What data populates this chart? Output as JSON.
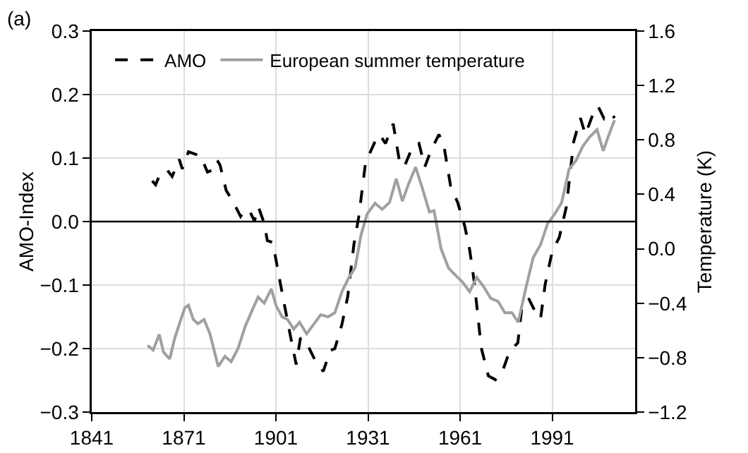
{
  "chart_data": {
    "type": "line",
    "annotations": [
      "(a)"
    ],
    "ylabel": "AMO-Index",
    "y2label": "Temperature (K)",
    "xlim": [
      1841,
      2018
    ],
    "xticks": [
      1841,
      1871,
      1901,
      1931,
      1961,
      1991
    ],
    "ylim": [
      -0.3,
      0.3
    ],
    "yticks": [
      {
        "value": -0.3,
        "label": "−0.3"
      },
      {
        "value": -0.2,
        "label": "−0.2"
      },
      {
        "value": -0.1,
        "label": "−0.1"
      },
      {
        "value": 0,
        "label": "0.0"
      },
      0.1,
      0.2,
      0.3
    ],
    "y2lim": [
      -1.2,
      1.6
    ],
    "y2ticks": [
      {
        "value": -1.2,
        "label": "−1.2"
      },
      {
        "value": -0.8,
        "label": "−0.8"
      },
      {
        "value": -0.4,
        "label": "−0.4"
      },
      {
        "value": 0,
        "label": "0.0"
      },
      0.4,
      0.8,
      1.2,
      1.6
    ],
    "grid": true,
    "legend": "top left",
    "marker": "none",
    "ref_lines": [
      {
        "axis": "y",
        "value": 0,
        "color": "#000000",
        "line_style": "solid"
      }
    ],
    "series": [
      {
        "name": "AMO",
        "color": "#000000",
        "line_style": "dashed",
        "x": [
          1860.7,
          1861.8,
          1863.3,
          1865.6,
          1867.2,
          1869.5,
          1870.5,
          1872.5,
          1874.8,
          1876.4,
          1878.7,
          1880.2,
          1881.8,
          1882.8,
          1884.8,
          1887.2,
          1889.5,
          1891,
          1892.5,
          1894,
          1895.3,
          1897.2,
          1898.2,
          1900,
          1901.8,
          1903.8,
          1905.6,
          1907.6,
          1909,
          1911,
          1913.3,
          1916.4,
          1918.7,
          1920.2,
          1922.5,
          1924.4,
          1926.4,
          1928,
          1930.2,
          1933.3,
          1934.8,
          1936.7,
          1939.2,
          1941.3,
          1942.8,
          1945.6,
          1947.6,
          1949.5,
          1951.5,
          1954.1,
          1955.6,
          1957.9,
          1960.2,
          1962.5,
          1964.1,
          1965.6,
          1967.9,
          1970.2,
          1972.5,
          1974.8,
          1976.4,
          1978.2,
          1979.8,
          1981,
          1983.3,
          1985.6,
          1987.2,
          1988.7,
          1991,
          1993.3,
          1995.6,
          1998,
          2000.2,
          2001.8,
          2004.1,
          2005.9,
          2007.9,
          2010.2,
          2011.3
        ],
        "values": [
          0.064,
          0.058,
          0.075,
          0.081,
          0.071,
          0.098,
          0.083,
          0.11,
          0.106,
          0.104,
          0.078,
          0.081,
          0.097,
          0.089,
          0.049,
          0.03,
          0.008,
          0.019,
          0.016,
          0.001,
          0.023,
          -0.003,
          -0.03,
          -0.033,
          -0.081,
          -0.132,
          -0.177,
          -0.225,
          -0.183,
          -0.191,
          -0.214,
          -0.236,
          -0.203,
          -0.2,
          -0.162,
          -0.118,
          -0.036,
          0.008,
          0.093,
          0.126,
          0.137,
          0.123,
          0.154,
          0.093,
          0.086,
          0.119,
          0.123,
          0.086,
          0.112,
          0.137,
          0.123,
          0.056,
          0.03,
          -0.007,
          -0.044,
          -0.095,
          -0.199,
          -0.243,
          -0.249,
          -0.236,
          -0.214,
          -0.199,
          -0.191,
          -0.14,
          -0.121,
          -0.143,
          -0.153,
          -0.099,
          -0.047,
          -0.025,
          0.023,
          0.126,
          0.163,
          0.137,
          0.167,
          0.182,
          0.162,
          0.171,
          0.163
        ]
      },
      {
        "name": "European summer temperature",
        "color": "#a0a0a0",
        "line_style": "solid",
        "axis": "y2",
        "x": [
          1859.2,
          1861,
          1863,
          1864.4,
          1866.4,
          1868,
          1869.5,
          1871.3,
          1872.5,
          1874.1,
          1875.6,
          1877.6,
          1879.5,
          1882.2,
          1884.4,
          1886.4,
          1888.7,
          1891,
          1893.3,
          1895.2,
          1897.2,
          1899.5,
          1901,
          1903,
          1904.8,
          1906.8,
          1908.7,
          1911,
          1913.3,
          1915.6,
          1918,
          1920.2,
          1922.5,
          1924.8,
          1926.8,
          1928.7,
          1930.7,
          1933.3,
          1935.6,
          1938,
          1940.2,
          1942.2,
          1944.1,
          1946.5,
          1948.7,
          1951,
          1952.5,
          1954.8,
          1957.2,
          1959.5,
          1961.8,
          1964.1,
          1966.4,
          1968.7,
          1971,
          1973.3,
          1975.6,
          1977.9,
          1979.9,
          1982.5,
          1984.8,
          1987.2,
          1989.5,
          1991.8,
          1994.1,
          1996.5,
          1998.8,
          2001,
          2003.3,
          2005.6,
          2007.6,
          2009.5,
          2011.3
        ],
        "values": [
          -0.71,
          -0.745,
          -0.63,
          -0.76,
          -0.81,
          -0.66,
          -0.555,
          -0.435,
          -0.415,
          -0.52,
          -0.55,
          -0.52,
          -0.625,
          -0.865,
          -0.79,
          -0.83,
          -0.73,
          -0.57,
          -0.45,
          -0.355,
          -0.4,
          -0.295,
          -0.415,
          -0.5,
          -0.52,
          -0.59,
          -0.54,
          -0.625,
          -0.555,
          -0.485,
          -0.5,
          -0.47,
          -0.315,
          -0.21,
          -0.14,
          0.1,
          0.255,
          0.335,
          0.29,
          0.34,
          0.515,
          0.35,
          0.47,
          0.6,
          0.445,
          0.27,
          0.28,
          0.0,
          -0.14,
          -0.195,
          -0.245,
          -0.315,
          -0.21,
          -0.28,
          -0.365,
          -0.385,
          -0.47,
          -0.47,
          -0.54,
          -0.28,
          -0.065,
          0.03,
          0.185,
          0.255,
          0.34,
          0.585,
          0.65,
          0.755,
          0.825,
          0.875,
          0.72,
          0.84,
          0.945
        ]
      }
    ]
  }
}
